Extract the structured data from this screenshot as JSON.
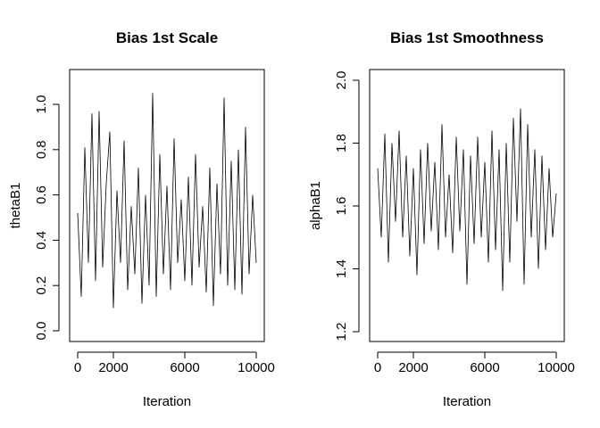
{
  "chart_data": [
    {
      "type": "line",
      "title": "Bias 1st Scale",
      "xlabel": "Iteration",
      "ylabel": "thetaB1",
      "xlim": [
        0,
        10000
      ],
      "ylim": [
        0.0,
        1.0
      ],
      "x_ticks": [
        0,
        2000,
        6000,
        10000
      ],
      "y_ticks": [
        0.0,
        0.2,
        0.4,
        0.6,
        0.8,
        1.0
      ],
      "x_tick_labels": [
        "0",
        "2000",
        "6000",
        "10000"
      ],
      "y_tick_labels": [
        "0.0",
        "0.2",
        "0.4",
        "0.6",
        "0.8",
        "1.0"
      ],
      "grid": false,
      "series": [
        {
          "x": [
            0,
            200,
            400,
            600,
            800,
            1000,
            1200,
            1400,
            1600,
            1800,
            2000,
            2200,
            2400,
            2600,
            2800,
            3000,
            3200,
            3400,
            3600,
            3800,
            4000,
            4200,
            4400,
            4600,
            4800,
            5000,
            5200,
            5400,
            5600,
            5800,
            6000,
            6200,
            6400,
            6600,
            6800,
            7000,
            7200,
            7400,
            7600,
            7800,
            8000,
            8200,
            8400,
            8600,
            8800,
            9000,
            9200,
            9400,
            9600,
            9800,
            10000
          ],
          "values": [
            0.52,
            0.15,
            0.81,
            0.3,
            0.96,
            0.22,
            0.97,
            0.28,
            0.65,
            0.88,
            0.1,
            0.62,
            0.3,
            0.84,
            0.18,
            0.55,
            0.25,
            0.72,
            0.12,
            0.6,
            0.2,
            1.05,
            0.15,
            0.78,
            0.25,
            0.64,
            0.18,
            0.85,
            0.3,
            0.58,
            0.22,
            0.68,
            0.2,
            0.78,
            0.28,
            0.55,
            0.17,
            0.72,
            0.11,
            0.65,
            0.25,
            1.03,
            0.2,
            0.75,
            0.18,
            0.8,
            0.16,
            0.9,
            0.25,
            0.6,
            0.3
          ]
        }
      ]
    },
    {
      "type": "line",
      "title": "Bias 1st Smoothness",
      "xlabel": "Iteration",
      "ylabel": "alphaB1",
      "xlim": [
        0,
        10000
      ],
      "ylim": [
        1.2,
        2.0
      ],
      "x_ticks": [
        0,
        2000,
        6000,
        10000
      ],
      "y_ticks": [
        1.2,
        1.4,
        1.6,
        1.8,
        2.0
      ],
      "x_tick_labels": [
        "0",
        "2000",
        "6000",
        "10000"
      ],
      "y_tick_labels": [
        "1.2",
        "1.4",
        "1.6",
        "1.8",
        "2.0"
      ],
      "grid": false,
      "series": [
        {
          "x": [
            0,
            200,
            400,
            600,
            800,
            1000,
            1200,
            1400,
            1600,
            1800,
            2000,
            2200,
            2400,
            2600,
            2800,
            3000,
            3200,
            3400,
            3600,
            3800,
            4000,
            4200,
            4400,
            4600,
            4800,
            5000,
            5200,
            5400,
            5600,
            5800,
            6000,
            6200,
            6400,
            6600,
            6800,
            7000,
            7200,
            7400,
            7600,
            7800,
            8000,
            8200,
            8400,
            8600,
            8800,
            9000,
            9200,
            9400,
            9600,
            9800,
            10000
          ],
          "values": [
            1.72,
            1.5,
            1.83,
            1.42,
            1.8,
            1.55,
            1.84,
            1.5,
            1.76,
            1.44,
            1.72,
            1.38,
            1.78,
            1.48,
            1.8,
            1.52,
            1.74,
            1.46,
            1.86,
            1.5,
            1.7,
            1.45,
            1.82,
            1.52,
            1.78,
            1.35,
            1.76,
            1.48,
            1.82,
            1.5,
            1.74,
            1.42,
            1.84,
            1.46,
            1.78,
            1.33,
            1.8,
            1.42,
            1.88,
            1.55,
            1.91,
            1.35,
            1.86,
            1.5,
            1.78,
            1.4,
            1.76,
            1.46,
            1.72,
            1.5,
            1.64
          ]
        }
      ]
    }
  ]
}
